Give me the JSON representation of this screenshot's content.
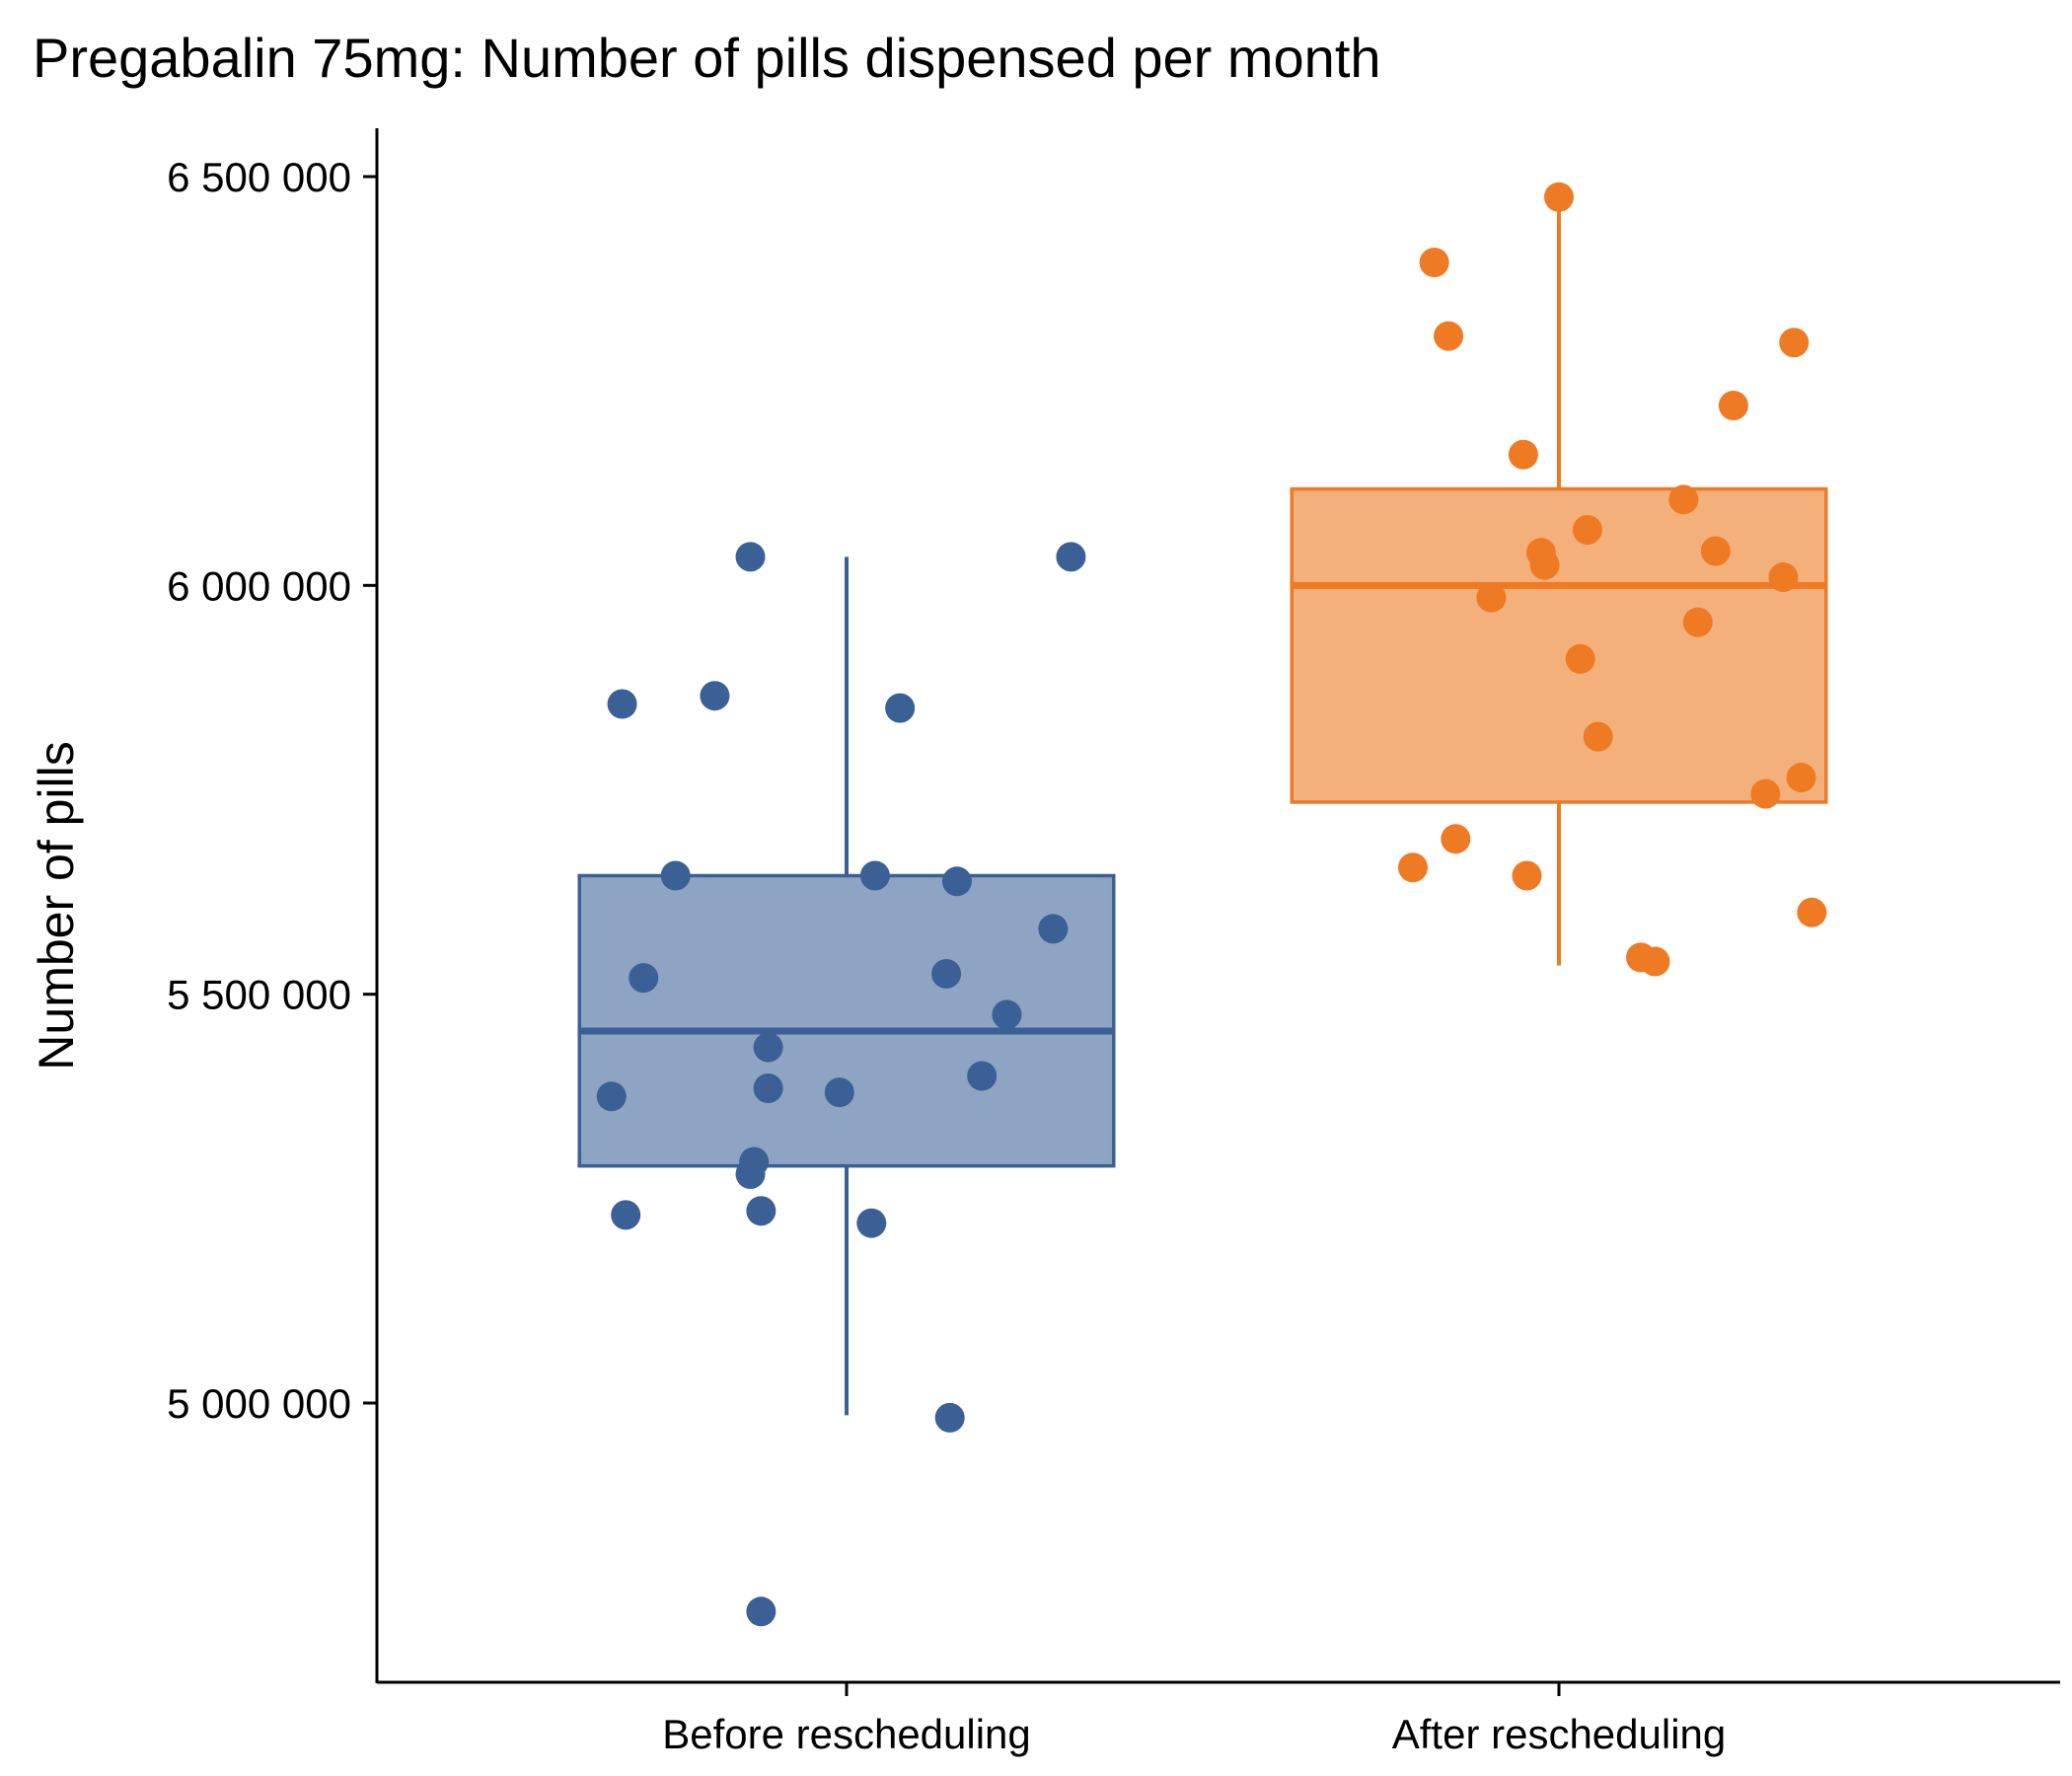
{
  "chart_data": {
    "type": "box",
    "title": "Pregabalin 75mg: Number of pills dispensed per month",
    "xlabel": "",
    "ylabel": "Number of pills",
    "ylim": [
      4710000,
      6560000
    ],
    "yticks": [
      5000000,
      5500000,
      6000000,
      6500000
    ],
    "ytick_labels": [
      "5 000 000",
      "5 500 000",
      "6 000 000",
      "6 500 000"
    ],
    "categories": [
      "Before rescheduling",
      "After rescheduling"
    ],
    "grid": false,
    "legend": "none",
    "series": [
      {
        "category": "Before rescheduling",
        "color": "#3B6095",
        "fill": "#8DA4C2",
        "box": {
          "whisker_low": 4985000,
          "q1": 5290000,
          "median": 5455000,
          "q3": 5645000,
          "whisker_high": 6035000
        },
        "points": [
          {
            "x": -0.66,
            "y": 5375000
          },
          {
            "x": -0.63,
            "y": 5855000
          },
          {
            "x": -0.62,
            "y": 5230000
          },
          {
            "x": -0.57,
            "y": 5520000
          },
          {
            "x": -0.48,
            "y": 5645000
          },
          {
            "x": -0.37,
            "y": 5865000
          },
          {
            "x": -0.27,
            "y": 6035000
          },
          {
            "x": -0.27,
            "y": 5280000
          },
          {
            "x": -0.26,
            "y": 5295000
          },
          {
            "x": -0.24,
            "y": 5235000
          },
          {
            "x": -0.24,
            "y": 4745000
          },
          {
            "x": -0.22,
            "y": 5385000
          },
          {
            "x": -0.22,
            "y": 5435000
          },
          {
            "x": -0.02,
            "y": 5380000
          },
          {
            "x": 0.07,
            "y": 5220000
          },
          {
            "x": 0.08,
            "y": 5645000
          },
          {
            "x": 0.15,
            "y": 5850000
          },
          {
            "x": 0.28,
            "y": 5525000
          },
          {
            "x": 0.29,
            "y": 4982000
          },
          {
            "x": 0.31,
            "y": 5638000
          },
          {
            "x": 0.38,
            "y": 5400000
          },
          {
            "x": 0.45,
            "y": 5475000
          },
          {
            "x": 0.58,
            "y": 5580000
          },
          {
            "x": 0.63,
            "y": 6035000
          }
        ]
      },
      {
        "category": "After rescheduling",
        "color": "#EE7A24",
        "fill": "#F4B07A",
        "box": {
          "whisker_low": 5535000,
          "q1": 5735000,
          "median": 6000000,
          "q3": 6118000,
          "whisker_high": 6475000
        },
        "points": [
          {
            "x": -0.41,
            "y": 5655000
          },
          {
            "x": -0.35,
            "y": 6395000
          },
          {
            "x": -0.31,
            "y": 6305000
          },
          {
            "x": -0.29,
            "y": 5690000
          },
          {
            "x": -0.19,
            "y": 5985000
          },
          {
            "x": -0.1,
            "y": 6160000
          },
          {
            "x": -0.09,
            "y": 5645000
          },
          {
            "x": -0.05,
            "y": 6040000
          },
          {
            "x": -0.04,
            "y": 6025000
          },
          {
            "x": 0.0,
            "y": 6475000
          },
          {
            "x": 0.06,
            "y": 5910000
          },
          {
            "x": 0.08,
            "y": 6068000
          },
          {
            "x": 0.11,
            "y": 5815000
          },
          {
            "x": 0.23,
            "y": 5545000
          },
          {
            "x": 0.27,
            "y": 5540000
          },
          {
            "x": 0.35,
            "y": 6105000
          },
          {
            "x": 0.39,
            "y": 5955000
          },
          {
            "x": 0.44,
            "y": 6042000
          },
          {
            "x": 0.49,
            "y": 6220000
          },
          {
            "x": 0.58,
            "y": 5745000
          },
          {
            "x": 0.63,
            "y": 6010000
          },
          {
            "x": 0.66,
            "y": 6297000
          },
          {
            "x": 0.68,
            "y": 5765000
          },
          {
            "x": 0.71,
            "y": 5600000
          }
        ]
      }
    ]
  }
}
